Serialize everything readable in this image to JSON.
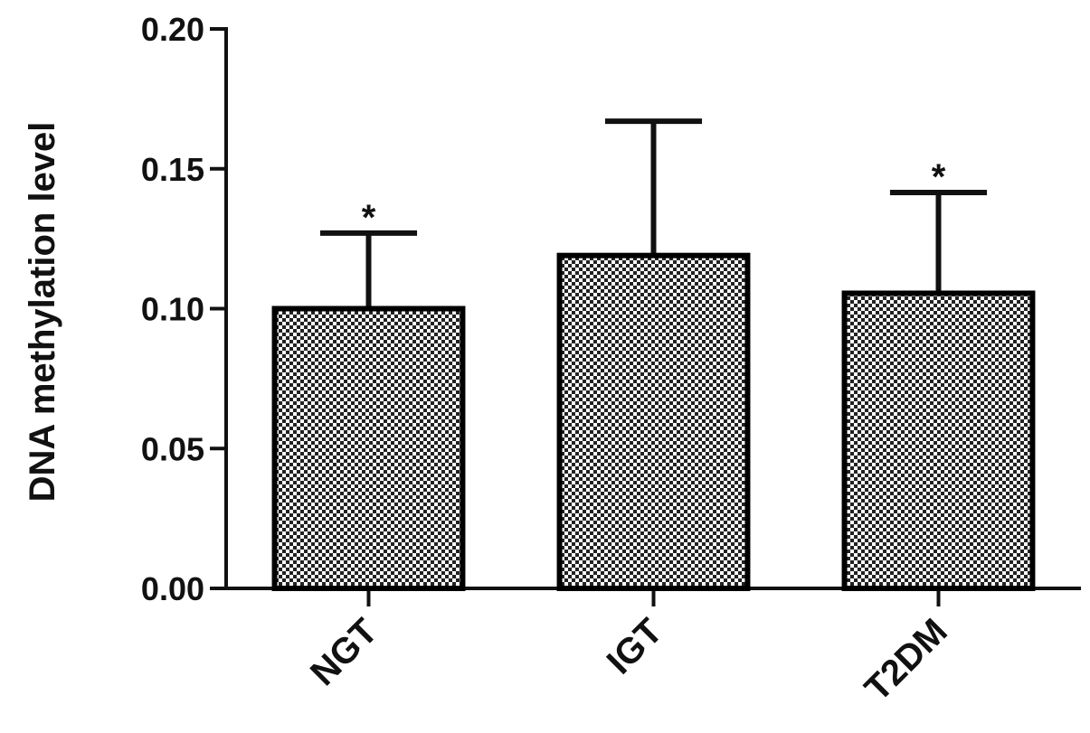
{
  "chart_data": {
    "type": "bar",
    "y_label": "DNA methylation level",
    "categories": [
      "NGT",
      "IGT",
      "T2DM"
    ],
    "values": [
      0.1,
      0.119,
      0.1055
    ],
    "errors": [
      0.027,
      0.048,
      0.036
    ],
    "significance": [
      "*",
      null,
      "*"
    ],
    "color": "#000000",
    "ylim": [
      0,
      0.2
    ],
    "yticks": [
      {
        "value": 0,
        "label": "0.00"
      },
      {
        "value": 0.05,
        "label": "0.05"
      },
      {
        "value": 0.1,
        "label": "0.10"
      },
      {
        "value": 0.15,
        "label": "0.15"
      },
      {
        "value": 0.2,
        "label": "0.20"
      }
    ],
    "grid": false
  }
}
